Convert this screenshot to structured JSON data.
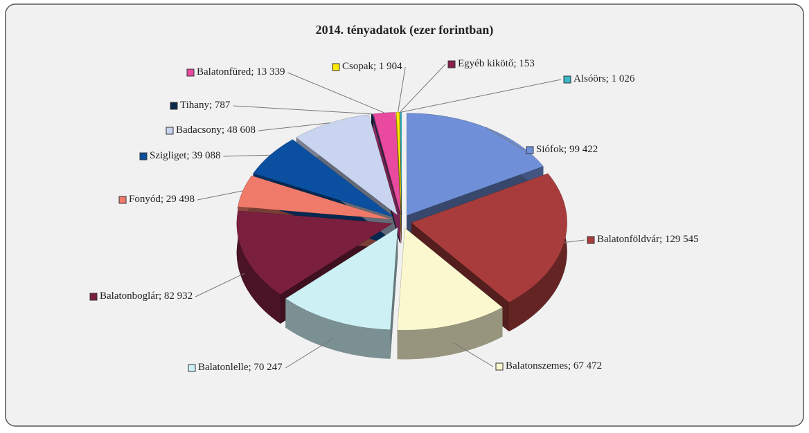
{
  "chart_data": {
    "type": "pie",
    "title": "2014. tényadatok (ezer forintban)",
    "categories": [
      "Siófok",
      "Balatonföldvár",
      "Balatonszemes",
      "Balatonlelle",
      "Balatonboglár",
      "Fonyód",
      "Szigliget",
      "Badacsony",
      "Tihany",
      "Balatonfüred",
      "Csopak",
      "Egyéb kikötő",
      "Alsóörs"
    ],
    "values": [
      99422,
      129545,
      67472,
      70247,
      82932,
      29498,
      39088,
      48608,
      787,
      13339,
      1904,
      153,
      1026
    ],
    "value_labels": [
      "99 422",
      "129 545",
      "67 472",
      "70 247",
      "82 932",
      "29 498",
      "39 088",
      "48 608",
      "787",
      "13 339",
      "1 904",
      "153",
      "1 026"
    ],
    "label_separator": "; ",
    "colors": [
      "#6f8fd8",
      "#a83c3c",
      "#fbf8d0",
      "#cdf0f4",
      "#7b1f3f",
      "#f07a6a",
      "#0a4fa0",
      "#c9d4f0",
      "#0d2a4a",
      "#e94aa0",
      "#ffea00",
      "#8a2050",
      "#3ab8c8"
    ]
  }
}
